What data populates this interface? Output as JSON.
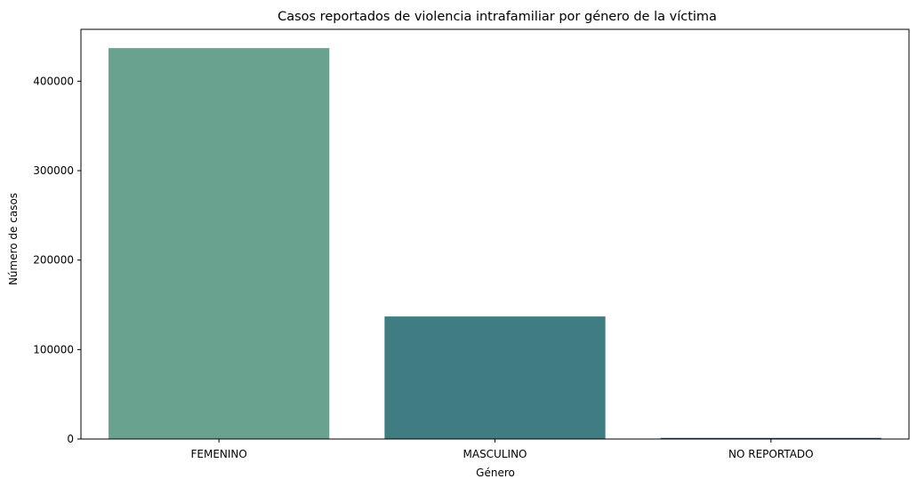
{
  "chart_data": {
    "type": "bar",
    "title": "Casos reportados de violencia intrafamiliar por género de la víctima",
    "xlabel": "Género",
    "ylabel": "Número de casos",
    "categories": [
      "FEMENINO",
      "MASCULINO",
      "NO REPORTADO"
    ],
    "values": [
      437000,
      137000,
      1200
    ],
    "colors": [
      "#69a28e",
      "#3f7d82",
      "#2a4766"
    ],
    "ylim": [
      0,
      458000
    ],
    "yticks": [
      0,
      100000,
      200000,
      300000,
      400000
    ],
    "ytick_labels": [
      "0",
      "100000",
      "200000",
      "300000",
      "400000"
    ],
    "grid": false,
    "legend": "none"
  }
}
